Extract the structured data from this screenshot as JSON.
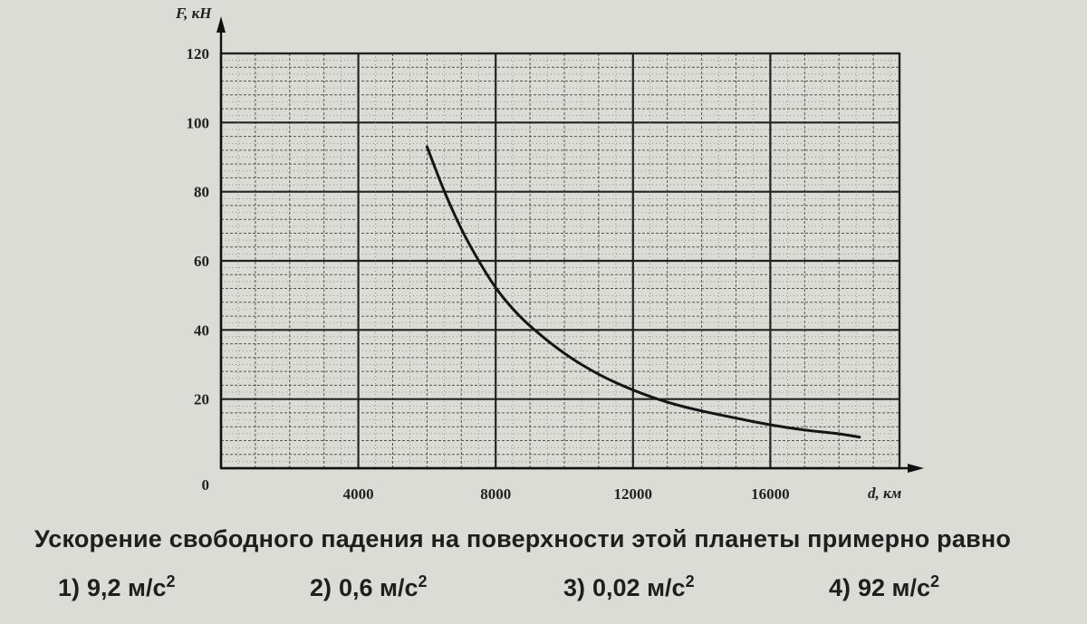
{
  "chart_data": {
    "type": "line",
    "xlabel": "d, км",
    "ylabel": "F, кН",
    "xlim": [
      0,
      19000
    ],
    "ylim": [
      0,
      120
    ],
    "x_ticks": [
      {
        "value": 4000,
        "label": "4000"
      },
      {
        "value": 8000,
        "label": "8000"
      },
      {
        "value": 12000,
        "label": "12000"
      },
      {
        "value": 16000,
        "label": "16000"
      }
    ],
    "y_ticks": [
      {
        "value": 0,
        "label": "0"
      },
      {
        "value": 20,
        "label": "20"
      },
      {
        "value": 40,
        "label": "40"
      },
      {
        "value": 60,
        "label": "60"
      },
      {
        "value": 80,
        "label": "80"
      },
      {
        "value": 100,
        "label": "100"
      },
      {
        "value": 120,
        "label": "120"
      }
    ],
    "grid": true,
    "series": [
      {
        "points": [
          [
            6000,
            93
          ],
          [
            6500,
            80
          ],
          [
            7000,
            69
          ],
          [
            7500,
            60
          ],
          [
            8000,
            52
          ],
          [
            8500,
            46
          ],
          [
            9000,
            41
          ],
          [
            10000,
            33
          ],
          [
            11000,
            27
          ],
          [
            12000,
            22.5
          ],
          [
            13000,
            19
          ],
          [
            14000,
            16.5
          ],
          [
            15000,
            14.5
          ],
          [
            16000,
            12.5
          ],
          [
            17000,
            11
          ],
          [
            18000,
            10
          ],
          [
            18600,
            9
          ]
        ]
      }
    ]
  },
  "question": {
    "text": "Ускорение свободного падения на поверхности этой планеты примерно равно",
    "answers": [
      {
        "num": "1)",
        "value": "9,2 м/с",
        "exp": "2"
      },
      {
        "num": "2)",
        "value": "0,6 м/с",
        "exp": "2"
      },
      {
        "num": "3)",
        "value": "0,02 м/с",
        "exp": "2"
      },
      {
        "num": "4)",
        "value": "92 м/с",
        "exp": "2"
      }
    ]
  },
  "colors": {
    "background": "#dcdcd6",
    "grid_major": "#222222",
    "grid_minor": "#555555",
    "curve": "#151515"
  }
}
